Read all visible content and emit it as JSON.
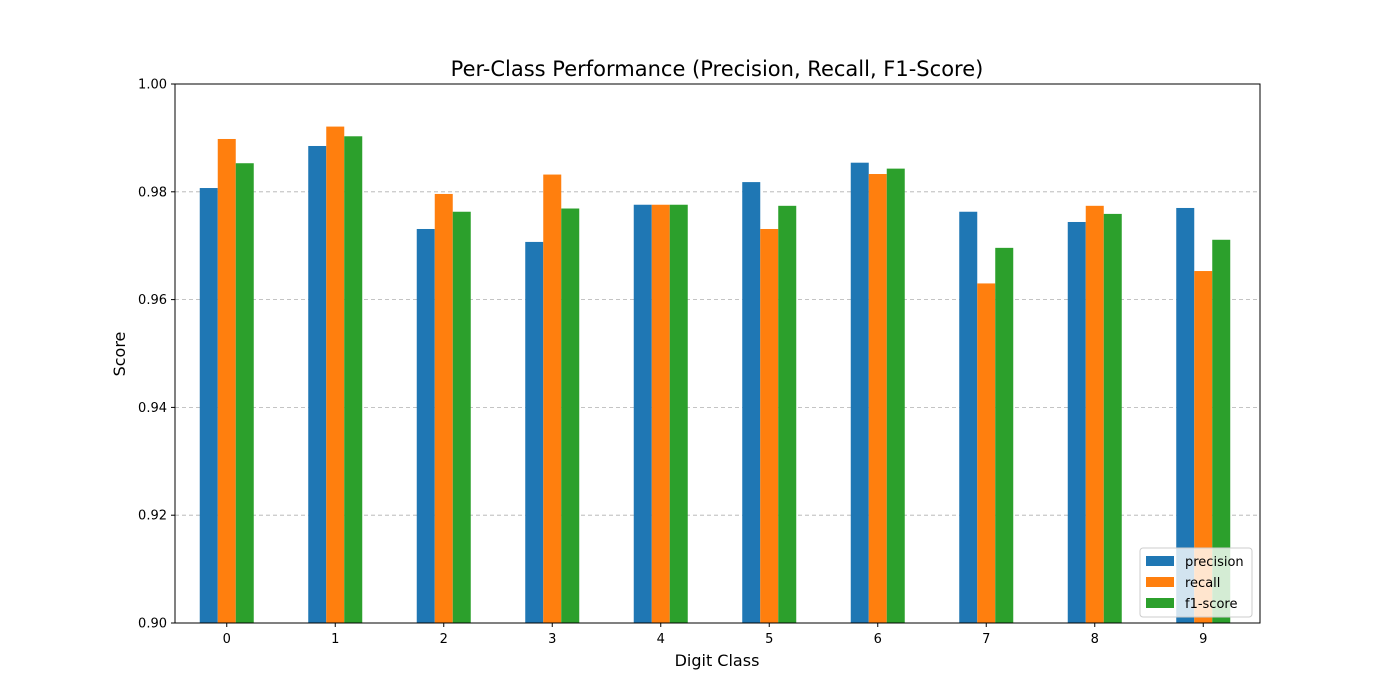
{
  "chart_data": {
    "type": "bar",
    "title": "Per-Class Performance (Precision, Recall, F1-Score)",
    "xlabel": "Digit Class",
    "ylabel": "Score",
    "categories": [
      "0",
      "1",
      "2",
      "3",
      "4",
      "5",
      "6",
      "7",
      "8",
      "9"
    ],
    "series": [
      {
        "name": "precision",
        "color": "#1f77b4",
        "values": [
          0.9807,
          0.9885,
          0.9731,
          0.9707,
          0.9776,
          0.9818,
          0.9854,
          0.9763,
          0.9744,
          0.977
        ]
      },
      {
        "name": "recall",
        "color": "#ff7f0e",
        "values": [
          0.9898,
          0.9921,
          0.9796,
          0.9832,
          0.9776,
          0.9731,
          0.9833,
          0.963,
          0.9774,
          0.9653
        ]
      },
      {
        "name": "f1-score",
        "color": "#2ca02c",
        "values": [
          0.9853,
          0.9903,
          0.9763,
          0.9769,
          0.9776,
          0.9774,
          0.9843,
          0.9696,
          0.9759,
          0.9711
        ]
      }
    ],
    "ylim": [
      0.9,
      1.0
    ],
    "yticks": [
      "0.90",
      "0.92",
      "0.94",
      "0.96",
      "0.98",
      "1.00"
    ],
    "grid": "y-dashed",
    "legend_position": "lower-right"
  }
}
